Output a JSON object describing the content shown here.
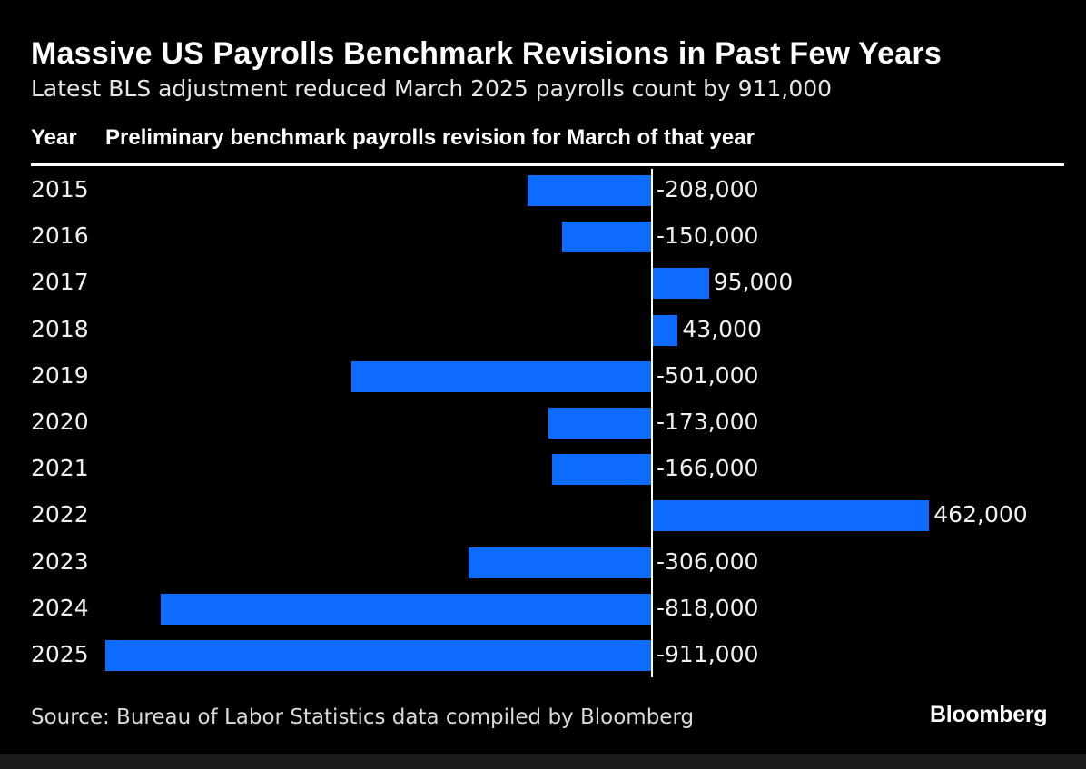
{
  "header": {
    "title": "Massive US Payrolls Benchmark Revisions in Past Few Years",
    "subtitle": "Latest BLS adjustment reduced March 2025 payrolls count by 911,000",
    "col_year": "Year",
    "col_metric": "Preliminary benchmark payrolls revision for March of that year"
  },
  "footer": {
    "source": "Source: Bureau of Labor Statistics data compiled by Bloomberg",
    "brand": "Bloomberg"
  },
  "colors": {
    "background": "#000000",
    "bar": "#0d6bff",
    "text": "#ffffff"
  },
  "chart_data": {
    "type": "bar",
    "orientation": "horizontal",
    "categories": [
      "2015",
      "2016",
      "2017",
      "2018",
      "2019",
      "2020",
      "2021",
      "2022",
      "2023",
      "2024",
      "2025"
    ],
    "values": [
      -208000,
      -150000,
      95000,
      43000,
      -501000,
      -173000,
      -166000,
      462000,
      -306000,
      -818000,
      -911000
    ],
    "value_labels": [
      "-208,000",
      "-150,000",
      "95,000",
      "43,000",
      "-501,000",
      "-173,000",
      "-166,000",
      "462,000",
      "-306,000",
      "-818,000",
      "-911,000"
    ],
    "title": "Massive US Payrolls Benchmark Revisions in Past Few Years",
    "subtitle": "Latest BLS adjustment reduced March 2025 payrolls count by 911,000",
    "xlim": [
      -911000,
      462000
    ],
    "grid": false,
    "legend": "none"
  }
}
